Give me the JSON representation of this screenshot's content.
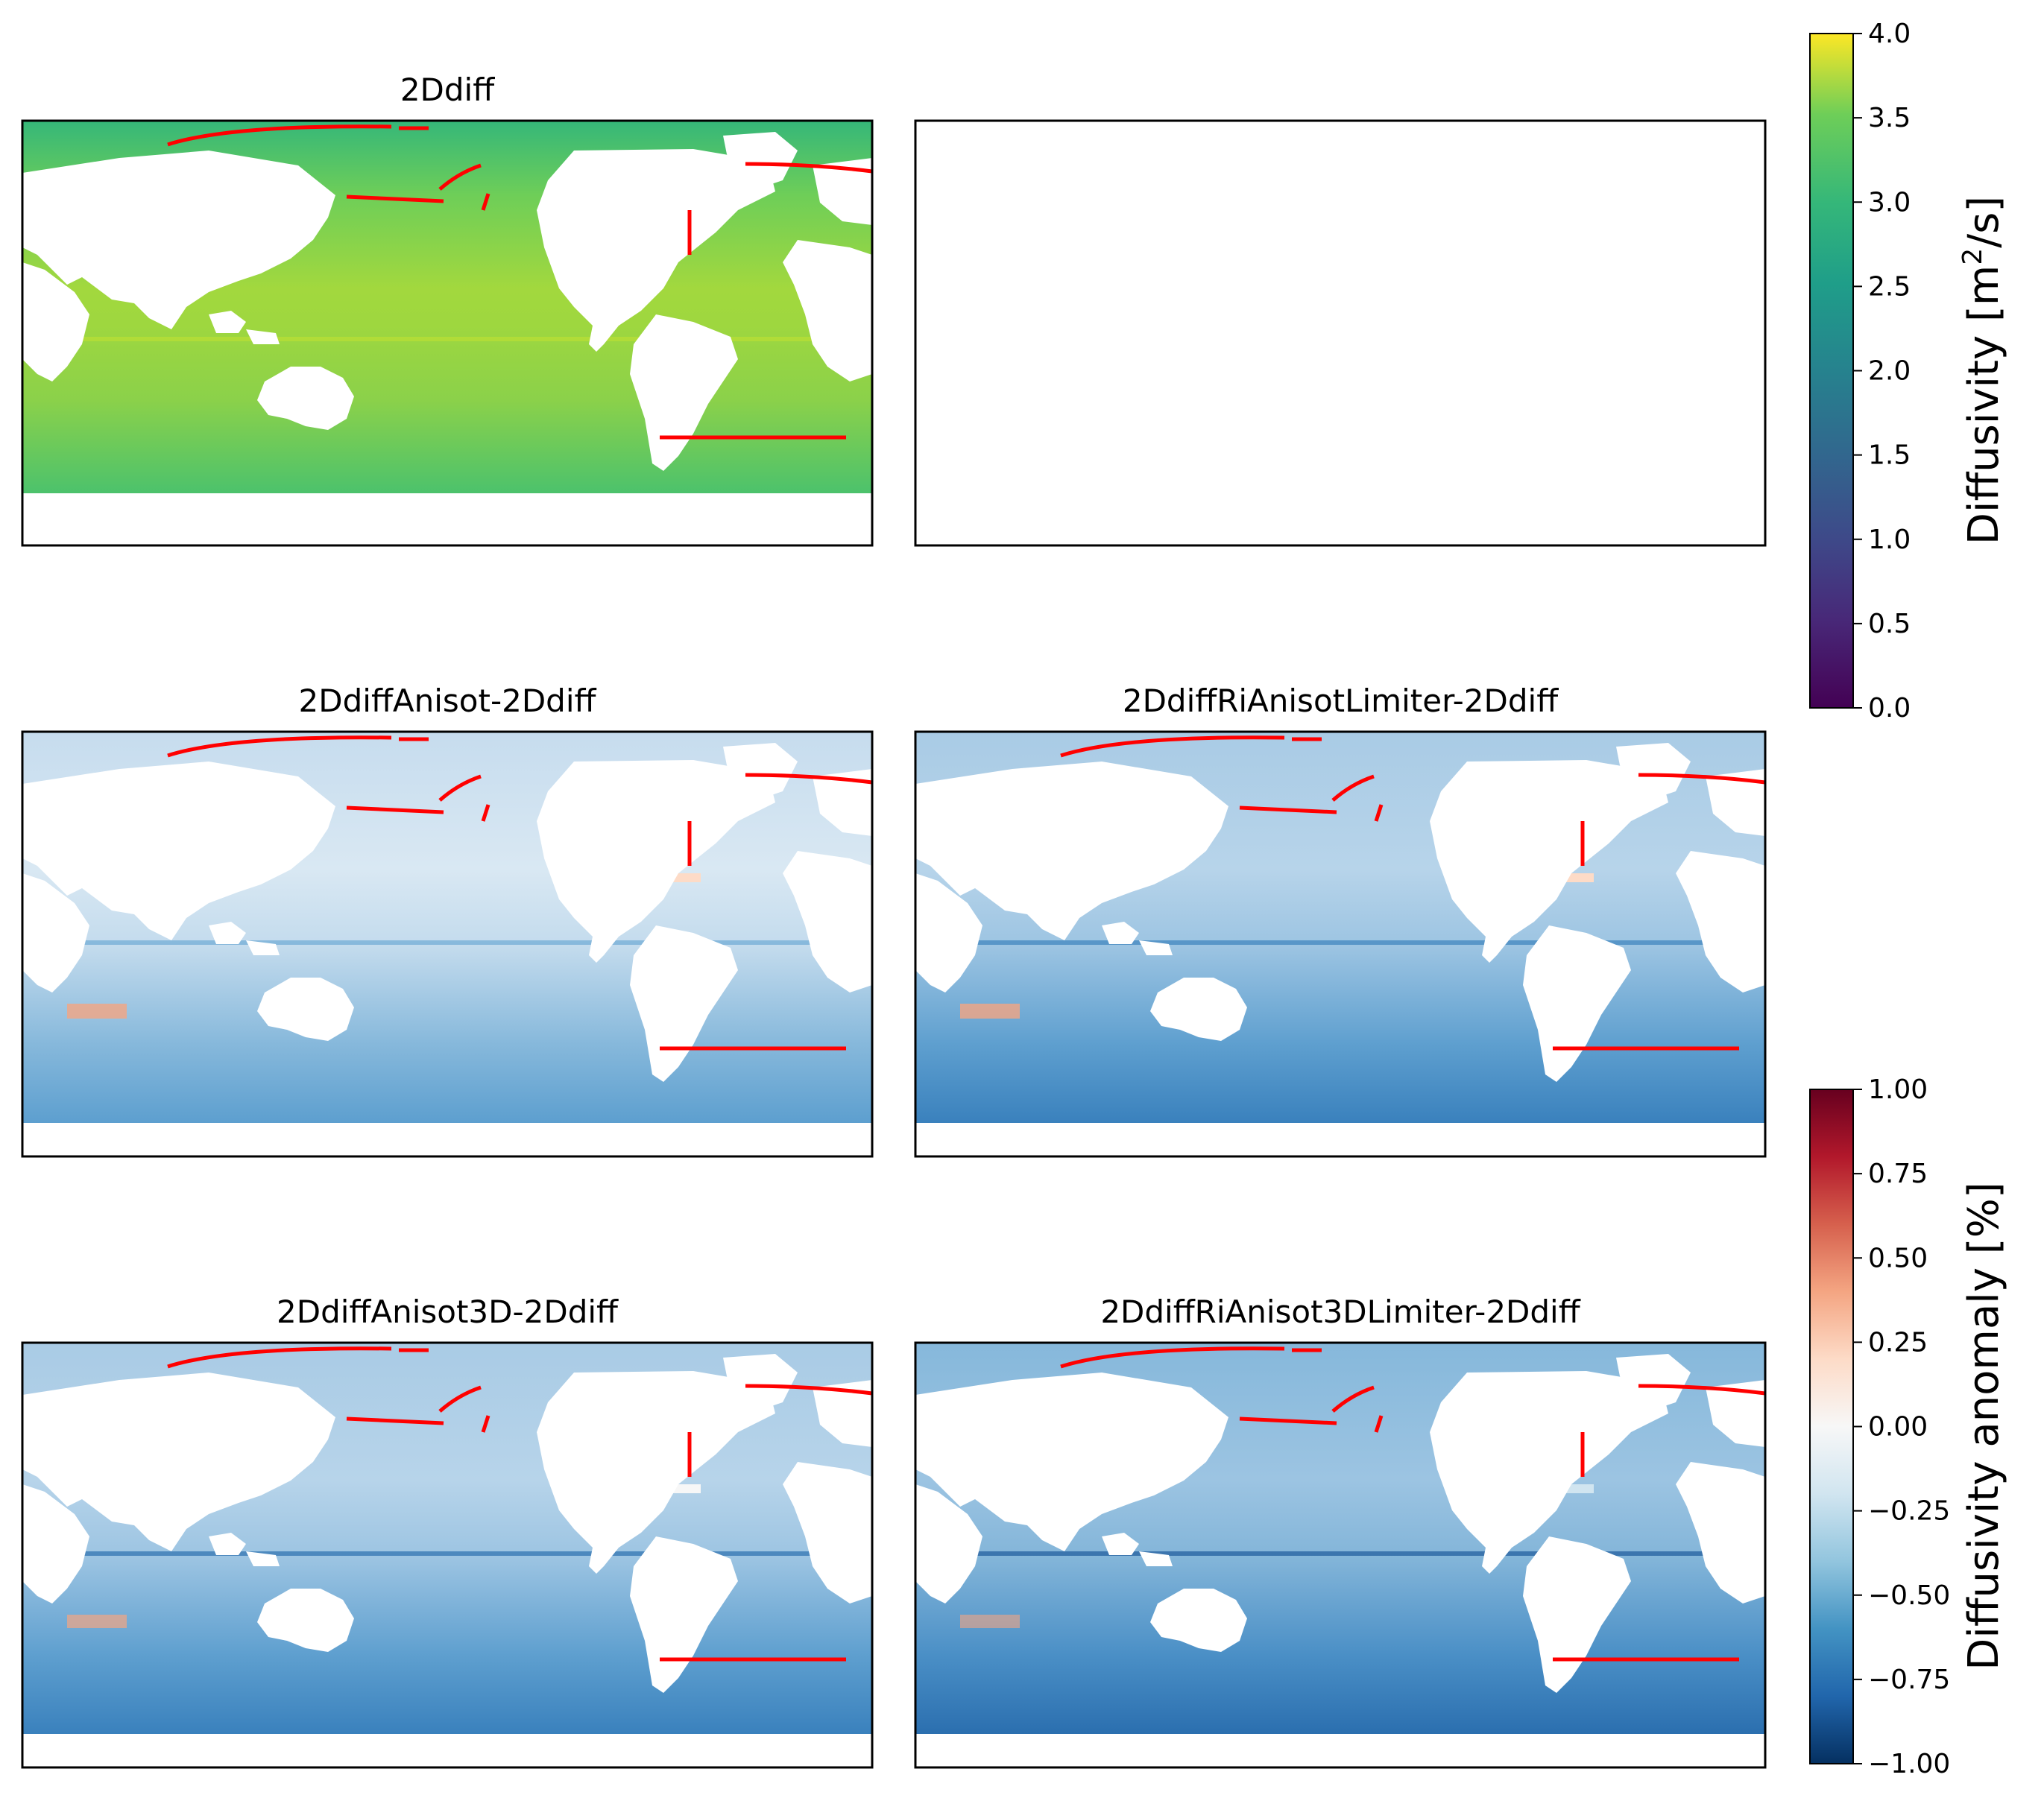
{
  "chart_data": {
    "type": "heatmap",
    "layout": "3x2 grid of global ocean maps with two colorbars",
    "panels": [
      {
        "id": "p1",
        "title": "2Ddiff",
        "colormap": "viridis",
        "field": "diffusivity",
        "empty": false
      },
      {
        "id": "p2",
        "title": "",
        "colormap": "none",
        "field": "none",
        "empty": true
      },
      {
        "id": "p3",
        "title": "2DdiffAnisot-2Ddiff",
        "colormap": "RdBu_r",
        "field": "anomaly",
        "empty": false
      },
      {
        "id": "p4",
        "title": "2DdiffRiAnisotLimiter-2Ddiff",
        "colormap": "RdBu_r",
        "field": "anomaly",
        "empty": false
      },
      {
        "id": "p5",
        "title": "2DdiffAnisot3D-2Ddiff",
        "colormap": "RdBu_r",
        "field": "anomaly",
        "empty": false
      },
      {
        "id": "p6",
        "title": "2DdiffRiAnisot3DLimiter-2Ddiff",
        "colormap": "RdBu_r",
        "field": "anomaly",
        "empty": false
      }
    ],
    "colorbars": [
      {
        "id": "cb-diffusivity",
        "label_main": "Diffusivity [m",
        "label_sup": "2",
        "label_end": "/s]",
        "colormap": "viridis",
        "range": [
          0.0,
          4.0
        ],
        "ticks": [
          "0.0",
          "0.5",
          "1.0",
          "1.5",
          "2.0",
          "2.5",
          "3.0",
          "3.5",
          "4.0"
        ]
      },
      {
        "id": "cb-anomaly",
        "label_main": "Diffusivity anomaly [%]",
        "label_sup": "",
        "label_end": "",
        "colormap": "RdBu_r",
        "range": [
          -1.0,
          1.0
        ],
        "ticks": [
          "−1.00",
          "−0.75",
          "−0.50",
          "−0.25",
          "0.00",
          "0.25",
          "0.50",
          "0.75",
          "1.00"
        ]
      }
    ],
    "section_line_color": "#ff0000",
    "grid": false
  }
}
